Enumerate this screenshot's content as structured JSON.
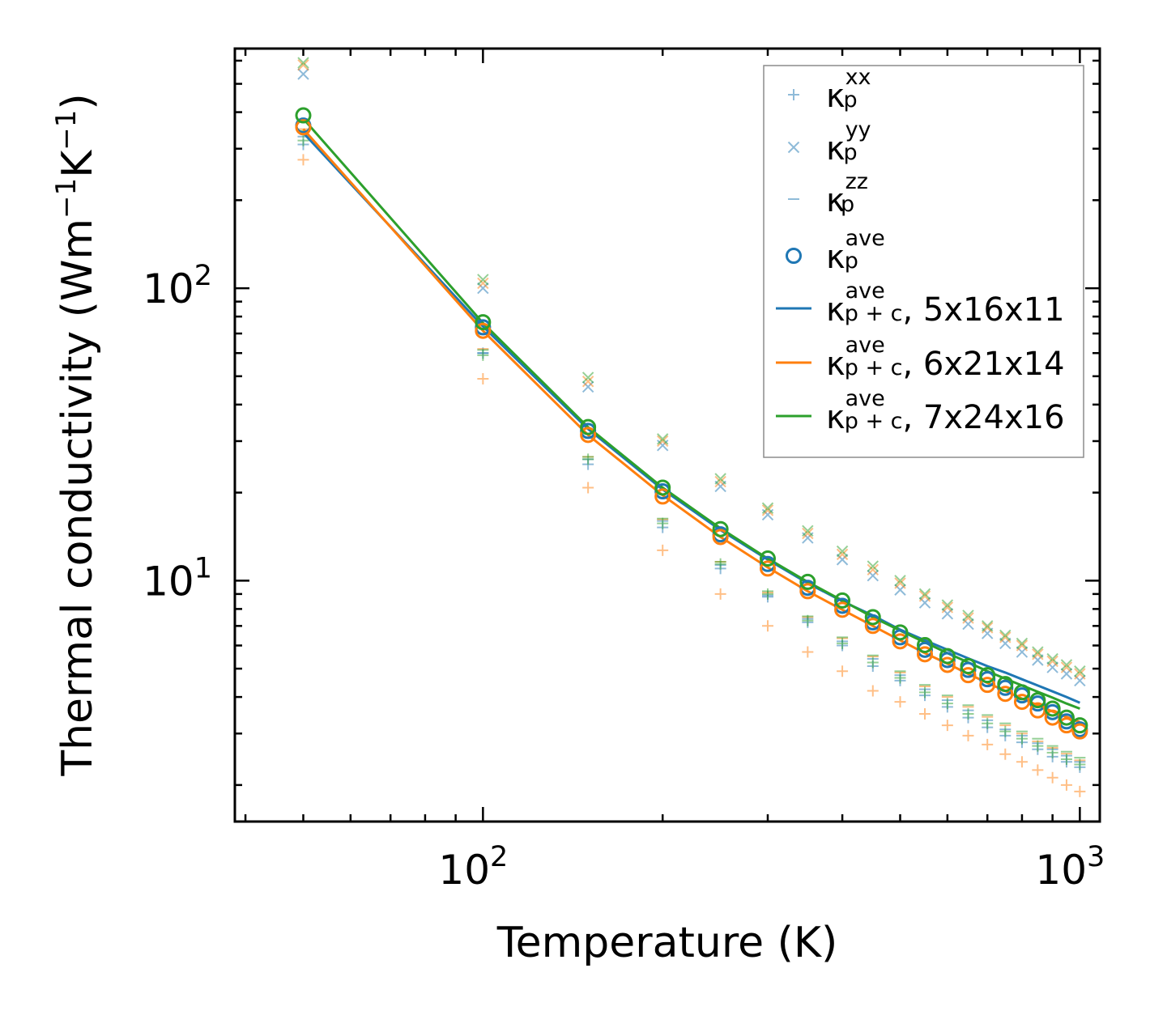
{
  "chart_data": {
    "type": "scatter",
    "title": "",
    "xlabel": "Temperature (K)",
    "ylabel_main": "Thermal conductivity (Wm",
    "ylabel_parts": [
      {
        "t": "Thermal conductivity (Wm"
      },
      {
        "t": "−1",
        "sup": true
      },
      {
        "t": "K"
      },
      {
        "t": "−1",
        "sup": true
      },
      {
        "t": ")"
      }
    ],
    "xscale": "log",
    "yscale": "log",
    "xlim": [
      38.4,
      1080
    ],
    "ylim": [
      1.5,
      660
    ],
    "x_major_ticks": [
      {
        "value": 100,
        "base": "10",
        "exp": "2"
      },
      {
        "value": 1000,
        "base": "10",
        "exp": "3"
      }
    ],
    "y_major_ticks": [
      {
        "value": 10,
        "base": "10",
        "exp": "1"
      },
      {
        "value": 100,
        "base": "10",
        "exp": "2"
      }
    ],
    "legend_position": "top-right",
    "colors": {
      "blue": "#1f77b4",
      "orange": "#ff7f0e",
      "green": "#2ca02c"
    },
    "x": [
      50,
      100,
      150,
      200,
      250,
      300,
      350,
      400,
      450,
      500,
      550,
      600,
      650,
      700,
      750,
      800,
      850,
      900,
      950,
      1000
    ],
    "sets": [
      {
        "name": "5x16x11",
        "color": "#1f77b4",
        "ave": [
          360,
          73.5,
          32.5,
          20.2,
          14.4,
          11.4,
          9.45,
          8.2,
          7.2,
          6.4,
          5.8,
          5.35,
          4.95,
          4.6,
          4.3,
          4.05,
          3.8,
          3.55,
          3.3,
          3.1
        ],
        "line": [
          340,
          74,
          33,
          20.5,
          14.9,
          11.8,
          9.8,
          8.5,
          7.6,
          6.8,
          6.25,
          5.8,
          5.42,
          5.1,
          4.85,
          4.6,
          4.38,
          4.18,
          4.0,
          3.82
        ],
        "xx": [
          310,
          60,
          25,
          15.2,
          11,
          8.8,
          7.2,
          6,
          5.1,
          4.55,
          4.05,
          3.7,
          3.4,
          3.15,
          2.95,
          2.8,
          2.65,
          2.5,
          2.4,
          2.3
        ],
        "yy": [
          540,
          100,
          46,
          29,
          21,
          16.8,
          14,
          11.8,
          10.4,
          9.3,
          8.4,
          7.7,
          7.1,
          6.6,
          6.1,
          5.7,
          5.35,
          5.05,
          4.8,
          4.55
        ],
        "zz": [
          330,
          60,
          26,
          16,
          11.3,
          8.9,
          7.4,
          6.2,
          5.4,
          4.75,
          4.25,
          3.9,
          3.6,
          3.33,
          3.1,
          2.95,
          2.78,
          2.65,
          2.52,
          2.4
        ]
      },
      {
        "name": "6x21x14",
        "color": "#ff7f0e",
        "ave": [
          355,
          71.5,
          31.5,
          19.4,
          14.1,
          11,
          9.2,
          7.95,
          7,
          6.2,
          5.6,
          5.15,
          4.75,
          4.4,
          4.1,
          3.85,
          3.6,
          3.4,
          3.2,
          3.05
        ],
        "line": [
          350,
          71.5,
          31.5,
          19.6,
          14.1,
          11.1,
          9.2,
          7.95,
          7.0,
          6.25,
          5.65,
          5.2,
          4.8,
          4.47,
          4.2,
          3.95,
          3.75,
          3.57,
          3.42,
          3.28
        ],
        "xx": [
          275,
          49,
          20.8,
          12.7,
          9,
          7,
          5.7,
          4.9,
          4.2,
          3.85,
          3.5,
          3.2,
          2.95,
          2.75,
          2.55,
          2.4,
          2.25,
          2.12,
          2,
          1.9
        ],
        "yy": [
          580,
          104,
          48,
          30,
          21.8,
          17.4,
          14.5,
          12.3,
          10.9,
          9.8,
          8.85,
          8.1,
          7.45,
          6.9,
          6.4,
          6,
          5.6,
          5.3,
          5.05,
          4.8
        ],
        "zz": [
          350,
          62,
          26.5,
          16.2,
          11.6,
          9.1,
          7.5,
          6.35,
          5.5,
          4.85,
          4.35,
          4,
          3.7,
          3.42,
          3.2,
          3,
          2.82,
          2.68,
          2.56,
          2.43
        ]
      },
      {
        "name": "7x24x16",
        "color": "#2ca02c",
        "ave": [
          390,
          76.5,
          33.5,
          20.8,
          15,
          11.9,
          9.9,
          8.55,
          7.5,
          6.65,
          6.02,
          5.52,
          5.1,
          4.75,
          4.43,
          4.15,
          3.9,
          3.65,
          3.4,
          3.2
        ],
        "line": [
          380,
          76,
          33.5,
          20.8,
          15.1,
          11.9,
          9.9,
          8.55,
          7.5,
          6.75,
          6.15,
          5.65,
          5.25,
          4.9,
          4.62,
          4.38,
          4.17,
          3.98,
          3.8,
          3.65
        ],
        "xx": [
          320,
          59,
          26,
          15.7,
          11.4,
          9,
          7.3,
          6.1,
          5.25,
          4.65,
          4.15,
          3.8,
          3.5,
          3.25,
          3.05,
          2.88,
          2.72,
          2.58,
          2.45,
          2.35
        ],
        "yy": [
          590,
          107,
          49.5,
          30.5,
          22.3,
          17.7,
          14.8,
          12.6,
          11.2,
          10,
          9,
          8.25,
          7.6,
          7,
          6.5,
          6.1,
          5.7,
          5.4,
          5.15,
          4.9
        ],
        "zz": [
          345,
          61.5,
          26.5,
          16.3,
          11.6,
          9.2,
          7.55,
          6.4,
          5.55,
          4.9,
          4.4,
          4.05,
          3.75,
          3.47,
          3.25,
          3.05,
          2.88,
          2.72,
          2.6,
          2.48
        ]
      }
    ],
    "legend": [
      {
        "kind": "plus",
        "sym": "κ",
        "sub": "p",
        "sup": "xx",
        "suffix": ""
      },
      {
        "kind": "x",
        "sym": "κ",
        "sub": "p",
        "sup": "yy",
        "suffix": ""
      },
      {
        "kind": "dash",
        "sym": "κ",
        "sub": "p",
        "sup": "zz",
        "suffix": ""
      },
      {
        "kind": "circle",
        "sym": "κ",
        "sub": "p",
        "sup": "ave",
        "suffix": ""
      },
      {
        "kind": "line",
        "color": "#1f77b4",
        "sym": "κ",
        "sub": "p + c",
        "sup": "ave",
        "suffix": ", 5x16x11"
      },
      {
        "kind": "line",
        "color": "#ff7f0e",
        "sym": "κ",
        "sub": "p + c",
        "sup": "ave",
        "suffix": ", 6x21x14"
      },
      {
        "kind": "line",
        "color": "#2ca02c",
        "sym": "κ",
        "sub": "p + c",
        "sup": "ave",
        "suffix": ", 7x24x16"
      }
    ]
  }
}
